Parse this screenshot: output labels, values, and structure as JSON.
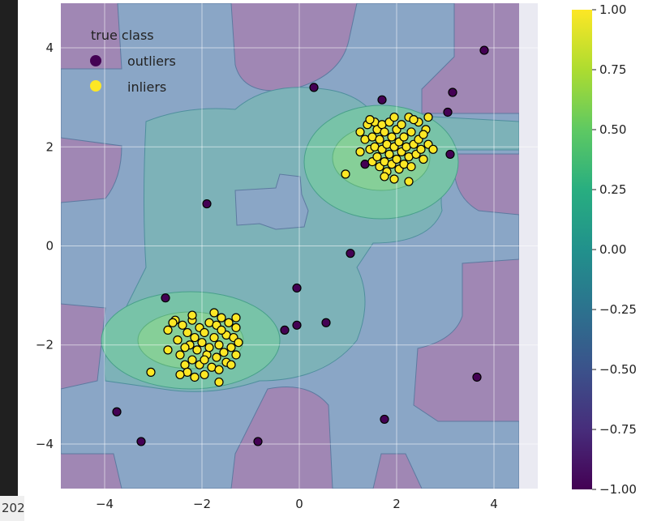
{
  "corner_text": "202",
  "colors": {
    "outlier": "#440154",
    "inlier": "#fde725",
    "plot_background": "#eaeaf2",
    "edge": "#000000"
  },
  "colorbar_stops": [
    "#440154",
    "#472d7b",
    "#3b528b",
    "#2c728e",
    "#21918c",
    "#28ae80",
    "#5ec962",
    "#addc30",
    "#fde725"
  ],
  "chart_data": {
    "type": "scatter",
    "subtype": "decision-function contour with labelled points",
    "xlim": [
      -4.9,
      4.9
    ],
    "ylim": [
      -4.9,
      4.9
    ],
    "x_ticks": [
      -4,
      -2,
      0,
      2,
      4
    ],
    "y_ticks": [
      -4,
      -2,
      0,
      2,
      4
    ],
    "x_tick_labels": [
      "−4",
      "−2",
      "0",
      "2",
      "4"
    ],
    "y_tick_labels": [
      "−4",
      "−2",
      "0",
      "2",
      "4"
    ],
    "grid": true,
    "legend": {
      "title": "true class",
      "placement": "top-left",
      "entries": [
        "outliers",
        "inliers"
      ]
    },
    "colorbar": {
      "colormap": "viridis",
      "range": [
        -1.0,
        1.0
      ],
      "ticks": [
        1.0,
        0.75,
        0.5,
        0.25,
        0.0,
        -0.25,
        -0.5,
        -0.75,
        -1.0
      ],
      "tick_labels": [
        "1.00",
        "0.75",
        "0.50",
        "0.25",
        "0.00",
        "−0.25",
        "−0.50",
        "−0.75",
        "−1.00"
      ]
    },
    "contour_levels": [
      -0.5,
      0.0,
      0.25,
      0.5
    ],
    "outliers": [
      [
        -3.75,
        -3.35
      ],
      [
        -3.25,
        -3.95
      ],
      [
        -1.9,
        0.85
      ],
      [
        -2.75,
        -1.05
      ],
      [
        -0.85,
        -3.95
      ],
      [
        -0.3,
        -1.7
      ],
      [
        -0.05,
        -1.6
      ],
      [
        -0.05,
        -0.85
      ],
      [
        0.3,
        3.2
      ],
      [
        0.55,
        -1.55
      ],
      [
        1.05,
        -0.15
      ],
      [
        1.7,
        2.95
      ],
      [
        1.75,
        -3.5
      ],
      [
        3.05,
        2.7
      ],
      [
        3.15,
        3.1
      ],
      [
        3.1,
        1.85
      ],
      [
        3.65,
        -2.65
      ],
      [
        3.8,
        3.95
      ],
      [
        1.35,
        1.65
      ]
    ],
    "inliers": [
      [
        -3.05,
        -2.55
      ],
      [
        -2.7,
        -1.7
      ],
      [
        -2.7,
        -2.1
      ],
      [
        -2.55,
        -1.5
      ],
      [
        -2.5,
        -1.9
      ],
      [
        -2.45,
        -2.2
      ],
      [
        -2.4,
        -1.6
      ],
      [
        -2.35,
        -2.4
      ],
      [
        -2.3,
        -1.75
      ],
      [
        -2.3,
        -2.55
      ],
      [
        -2.25,
        -2.0
      ],
      [
        -2.2,
        -1.5
      ],
      [
        -2.2,
        -2.3
      ],
      [
        -2.15,
        -1.85
      ],
      [
        -2.1,
        -2.1
      ],
      [
        -2.05,
        -1.65
      ],
      [
        -2.05,
        -2.4
      ],
      [
        -2.0,
        -1.95
      ],
      [
        -1.95,
        -2.6
      ],
      [
        -1.95,
        -1.75
      ],
      [
        -1.9,
        -2.2
      ],
      [
        -1.85,
        -1.55
      ],
      [
        -1.85,
        -2.05
      ],
      [
        -1.8,
        -2.45
      ],
      [
        -1.75,
        -1.85
      ],
      [
        -1.7,
        -2.25
      ],
      [
        -1.7,
        -1.6
      ],
      [
        -1.65,
        -2.0
      ],
      [
        -1.65,
        -2.75
      ],
      [
        -1.6,
        -1.45
      ],
      [
        -1.55,
        -2.15
      ],
      [
        -1.5,
        -1.8
      ],
      [
        -1.5,
        -2.35
      ],
      [
        -1.45,
        -1.55
      ],
      [
        -1.4,
        -2.05
      ],
      [
        -1.35,
        -1.85
      ],
      [
        -1.3,
        -1.65
      ],
      [
        -1.3,
        -2.2
      ],
      [
        -1.25,
        -1.95
      ],
      [
        -1.3,
        -1.45
      ],
      [
        -2.6,
        -1.55
      ],
      [
        -2.45,
        -2.6
      ],
      [
        -2.15,
        -2.65
      ],
      [
        -1.65,
        -2.5
      ],
      [
        -1.4,
        -2.4
      ],
      [
        -2.2,
        -1.4
      ],
      [
        -1.75,
        -1.35
      ],
      [
        -2.35,
        -2.05
      ],
      [
        -1.95,
        -2.3
      ],
      [
        -1.6,
        -1.7
      ],
      [
        0.95,
        1.45
      ],
      [
        1.25,
        2.3
      ],
      [
        1.25,
        1.9
      ],
      [
        1.35,
        2.15
      ],
      [
        1.4,
        2.45
      ],
      [
        1.45,
        1.95
      ],
      [
        1.5,
        2.2
      ],
      [
        1.5,
        1.7
      ],
      [
        1.55,
        2.5
      ],
      [
        1.55,
        2.0
      ],
      [
        1.6,
        2.35
      ],
      [
        1.6,
        1.8
      ],
      [
        1.65,
        1.6
      ],
      [
        1.65,
        2.15
      ],
      [
        1.7,
        2.45
      ],
      [
        1.7,
        1.95
      ],
      [
        1.75,
        1.7
      ],
      [
        1.75,
        2.3
      ],
      [
        1.8,
        2.05
      ],
      [
        1.8,
        1.5
      ],
      [
        1.85,
        2.5
      ],
      [
        1.85,
        1.85
      ],
      [
        1.9,
        2.2
      ],
      [
        1.9,
        1.65
      ],
      [
        1.95,
        2.0
      ],
      [
        1.95,
        1.35
      ],
      [
        2.0,
        2.35
      ],
      [
        2.0,
        1.75
      ],
      [
        2.05,
        2.1
      ],
      [
        2.05,
        1.55
      ],
      [
        2.1,
        2.45
      ],
      [
        2.1,
        1.9
      ],
      [
        2.15,
        2.2
      ],
      [
        2.15,
        1.65
      ],
      [
        2.2,
        2.0
      ],
      [
        2.25,
        2.6
      ],
      [
        2.25,
        1.8
      ],
      [
        2.3,
        2.3
      ],
      [
        2.3,
        1.6
      ],
      [
        2.35,
        2.05
      ],
      [
        2.4,
        1.85
      ],
      [
        2.45,
        2.5
      ],
      [
        2.45,
        2.15
      ],
      [
        2.5,
        1.95
      ],
      [
        2.55,
        1.75
      ],
      [
        2.6,
        2.35
      ],
      [
        2.65,
        2.6
      ],
      [
        2.65,
        2.05
      ],
      [
        2.75,
        1.95
      ],
      [
        2.25,
        1.3
      ],
      [
        1.75,
        1.4
      ],
      [
        1.95,
        2.6
      ],
      [
        2.35,
        2.55
      ],
      [
        1.45,
        2.55
      ],
      [
        2.55,
        2.25
      ]
    ]
  }
}
